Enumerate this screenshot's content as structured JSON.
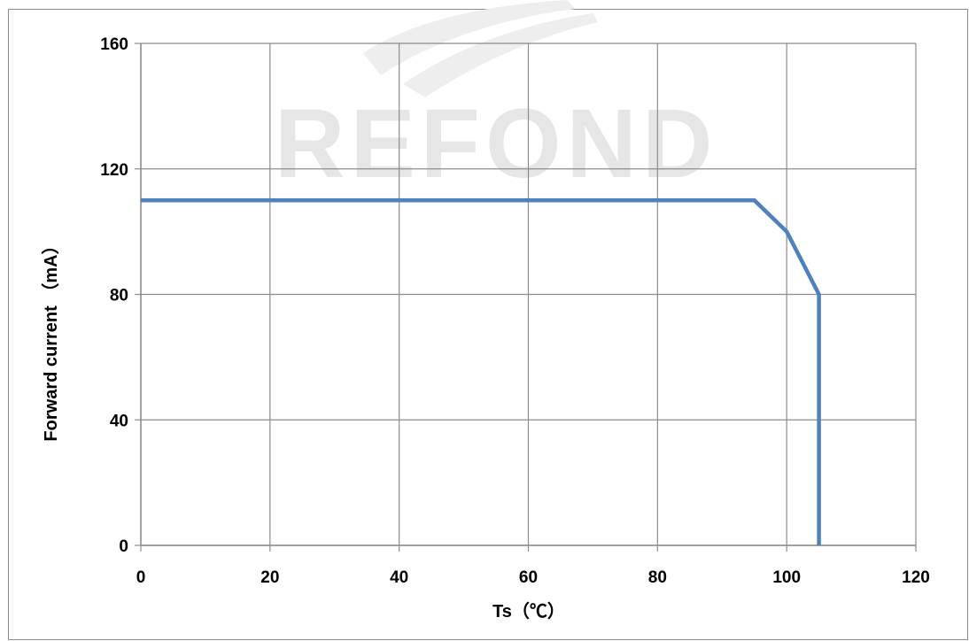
{
  "watermark": {
    "text": "REFOND"
  },
  "chart_data": {
    "type": "line",
    "title": "",
    "xlabel": "Ts（℃）",
    "ylabel": "Forward current （mA）",
    "xlim": [
      0,
      120
    ],
    "ylim": [
      0,
      160
    ],
    "x_ticks": [
      "0",
      "20",
      "40",
      "60",
      "80",
      "100",
      "120"
    ],
    "y_ticks": [
      "0",
      "40",
      "80",
      "120",
      "160"
    ],
    "grid": true,
    "legend": "none",
    "series": [
      {
        "color": "#4f81bd",
        "points": [
          [
            0,
            110
          ],
          [
            95,
            110
          ],
          [
            100,
            100
          ],
          [
            105,
            80
          ],
          [
            105,
            0
          ]
        ]
      }
    ]
  }
}
